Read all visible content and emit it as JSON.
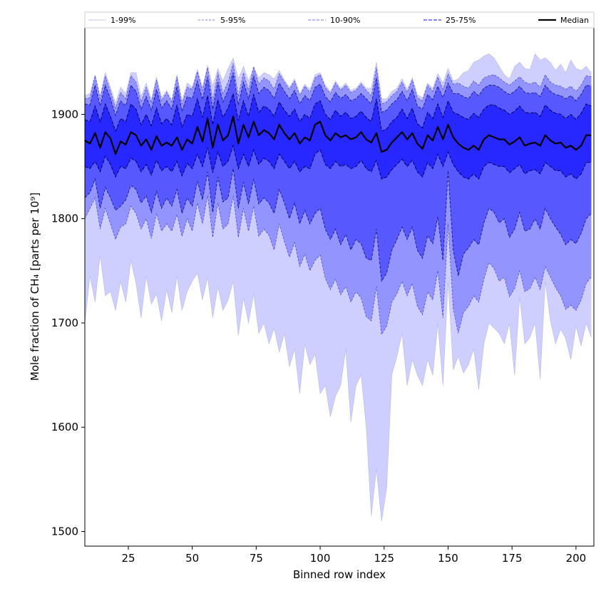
{
  "chart_data": {
    "type": "area",
    "xlabel": "Binned row index",
    "ylabel": "Mole fraction of CH₄ [parts per 10⁹]",
    "xlim": [
      8,
      207
    ],
    "ylim": [
      1486,
      1983
    ],
    "x_ticks": [
      25,
      50,
      75,
      100,
      125,
      150,
      175,
      200
    ],
    "y_ticks": [
      1500,
      1600,
      1700,
      1800,
      1900
    ],
    "grid": false,
    "legend_position": "top",
    "x": [
      8,
      10,
      12,
      14,
      16,
      18,
      20,
      22,
      24,
      26,
      28,
      30,
      32,
      34,
      36,
      38,
      40,
      42,
      44,
      46,
      48,
      50,
      52,
      54,
      56,
      58,
      60,
      62,
      64,
      66,
      68,
      70,
      72,
      74,
      76,
      78,
      80,
      82,
      84,
      86,
      88,
      90,
      92,
      94,
      96,
      98,
      100,
      102,
      104,
      106,
      108,
      110,
      112,
      114,
      116,
      118,
      120,
      122,
      124,
      126,
      128,
      130,
      132,
      134,
      136,
      138,
      140,
      142,
      144,
      146,
      148,
      150,
      152,
      154,
      156,
      158,
      160,
      162,
      164,
      166,
      168,
      170,
      172,
      174,
      176,
      178,
      180,
      182,
      184,
      186,
      188,
      190,
      192,
      194,
      196,
      198,
      200,
      202,
      204,
      206
    ],
    "series": [
      {
        "name": "Median",
        "values": [
          1875,
          1872,
          1882,
          1868,
          1883,
          1877,
          1862,
          1874,
          1871,
          1883,
          1880,
          1870,
          1876,
          1866,
          1879,
          1870,
          1873,
          1870,
          1878,
          1866,
          1876,
          1872,
          1888,
          1874,
          1896,
          1868,
          1890,
          1875,
          1880,
          1898,
          1872,
          1890,
          1878,
          1893,
          1880,
          1885,
          1882,
          1876,
          1890,
          1882,
          1876,
          1882,
          1872,
          1878,
          1875,
          1890,
          1893,
          1880,
          1875,
          1882,
          1878,
          1880,
          1876,
          1878,
          1883,
          1876,
          1873,
          1882,
          1864,
          1866,
          1873,
          1878,
          1883,
          1876,
          1882,
          1872,
          1867,
          1880,
          1875,
          1888,
          1876,
          1890,
          1878,
          1872,
          1868,
          1866,
          1870,
          1866,
          1876,
          1880,
          1878,
          1876,
          1876,
          1871,
          1874,
          1878,
          1870,
          1872,
          1873,
          1870,
          1880,
          1875,
          1872,
          1873,
          1868,
          1870,
          1866,
          1870,
          1880,
          1880
        ]
      },
      {
        "name": "25-75%",
        "lower": [
          1850,
          1848,
          1855,
          1845,
          1860,
          1852,
          1840,
          1850,
          1848,
          1858,
          1855,
          1845,
          1852,
          1842,
          1856,
          1846,
          1850,
          1845,
          1855,
          1841,
          1853,
          1848,
          1862,
          1850,
          1868,
          1844,
          1864,
          1850,
          1855,
          1870,
          1848,
          1862,
          1850,
          1866,
          1852,
          1858,
          1855,
          1848,
          1862,
          1855,
          1848,
          1855,
          1845,
          1850,
          1848,
          1862,
          1866,
          1852,
          1848,
          1855,
          1850,
          1852,
          1848,
          1850,
          1856,
          1848,
          1845,
          1856,
          1838,
          1840,
          1847,
          1852,
          1857,
          1850,
          1856,
          1845,
          1840,
          1854,
          1848,
          1862,
          1850,
          1864,
          1852,
          1845,
          1840,
          1838,
          1843,
          1838,
          1850,
          1854,
          1852,
          1850,
          1850,
          1844,
          1848,
          1852,
          1843,
          1846,
          1847,
          1843,
          1854,
          1850,
          1846,
          1846,
          1840,
          1843,
          1838,
          1843,
          1854,
          1854
        ],
        "upper": [
          1895,
          1893,
          1908,
          1893,
          1910,
          1898,
          1884,
          1896,
          1893,
          1910,
          1905,
          1890,
          1900,
          1889,
          1906,
          1891,
          1896,
          1890,
          1909,
          1888,
          1900,
          1898,
          1915,
          1897,
          1918,
          1890,
          1914,
          1897,
          1906,
          1920,
          1894,
          1913,
          1898,
          1919,
          1902,
          1908,
          1905,
          1898,
          1912,
          1904,
          1898,
          1905,
          1893,
          1900,
          1896,
          1910,
          1913,
          1900,
          1895,
          1904,
          1898,
          1902,
          1896,
          1898,
          1903,
          1897,
          1893,
          1915,
          1884,
          1886,
          1893,
          1897,
          1905,
          1896,
          1906,
          1891,
          1887,
          1902,
          1896,
          1910,
          1897,
          1913,
          1902,
          1900,
          1897,
          1895,
          1901,
          1897,
          1905,
          1909,
          1909,
          1906,
          1904,
          1900,
          1903,
          1908,
          1902,
          1901,
          1902,
          1898,
          1909,
          1904,
          1901,
          1900,
          1896,
          1900,
          1895,
          1901,
          1910,
          1908
        ]
      },
      {
        "name": "10-90%",
        "lower": [
          1820,
          1825,
          1838,
          1810,
          1830,
          1820,
          1808,
          1812,
          1818,
          1832,
          1828,
          1815,
          1822,
          1806,
          1826,
          1810,
          1820,
          1812,
          1828,
          1805,
          1820,
          1812,
          1836,
          1818,
          1845,
          1806,
          1840,
          1816,
          1820,
          1848,
          1810,
          1835,
          1814,
          1838,
          1814,
          1820,
          1815,
          1805,
          1828,
          1815,
          1800,
          1815,
          1795,
          1808,
          1795,
          1805,
          1810,
          1790,
          1780,
          1790,
          1775,
          1785,
          1770,
          1780,
          1776,
          1762,
          1760,
          1790,
          1740,
          1748,
          1770,
          1780,
          1792,
          1780,
          1792,
          1770,
          1762,
          1784,
          1776,
          1802,
          1760,
          1846,
          1770,
          1745,
          1766,
          1772,
          1780,
          1775,
          1796,
          1810,
          1806,
          1796,
          1800,
          1782,
          1790,
          1806,
          1788,
          1790,
          1800,
          1790,
          1810,
          1800,
          1792,
          1785,
          1775,
          1780,
          1776,
          1786,
          1800,
          1805
        ],
        "upper": [
          1910,
          1909,
          1928,
          1908,
          1928,
          1915,
          1899,
          1913,
          1908,
          1928,
          1922,
          1905,
          1917,
          1904,
          1924,
          1906,
          1913,
          1905,
          1927,
          1903,
          1917,
          1915,
          1932,
          1914,
          1936,
          1905,
          1931,
          1912,
          1923,
          1940,
          1909,
          1931,
          1915,
          1937,
          1920,
          1926,
          1923,
          1915,
          1930,
          1922,
          1915,
          1923,
          1910,
          1918,
          1913,
          1926,
          1929,
          1917,
          1912,
          1921,
          1915,
          1919,
          1913,
          1915,
          1920,
          1915,
          1910,
          1935,
          1902,
          1904,
          1910,
          1914,
          1922,
          1913,
          1924,
          1908,
          1905,
          1919,
          1914,
          1927,
          1916,
          1930,
          1920,
          1920,
          1917,
          1915,
          1922,
          1918,
          1925,
          1928,
          1928,
          1926,
          1922,
          1919,
          1922,
          1927,
          1921,
          1920,
          1921,
          1917,
          1928,
          1922,
          1919,
          1918,
          1915,
          1918,
          1913,
          1919,
          1928,
          1927
        ]
      },
      {
        "name": "5-95%",
        "lower": [
          1800,
          1810,
          1820,
          1790,
          1810,
          1795,
          1780,
          1792,
          1795,
          1812,
          1805,
          1790,
          1800,
          1781,
          1805,
          1788,
          1795,
          1788,
          1804,
          1783,
          1800,
          1788,
          1815,
          1795,
          1822,
          1782,
          1815,
          1790,
          1795,
          1822,
          1782,
          1810,
          1788,
          1812,
          1783,
          1790,
          1784,
          1770,
          1795,
          1778,
          1763,
          1777,
          1754,
          1766,
          1750,
          1760,
          1765,
          1743,
          1732,
          1742,
          1727,
          1735,
          1720,
          1730,
          1724,
          1706,
          1702,
          1735,
          1689,
          1697,
          1720,
          1728,
          1740,
          1726,
          1738,
          1716,
          1708,
          1730,
          1722,
          1750,
          1705,
          1795,
          1714,
          1690,
          1710,
          1716,
          1726,
          1720,
          1742,
          1758,
          1752,
          1740,
          1744,
          1725,
          1733,
          1750,
          1730,
          1733,
          1744,
          1732,
          1754,
          1744,
          1734,
          1726,
          1713,
          1717,
          1712,
          1722,
          1738,
          1744
        ],
        "upper": [
          1915,
          1916,
          1937,
          1915,
          1937,
          1922,
          1906,
          1921,
          1915,
          1937,
          1931,
          1912,
          1926,
          1911,
          1933,
          1913,
          1921,
          1912,
          1936,
          1910,
          1926,
          1924,
          1941,
          1923,
          1945,
          1913,
          1940,
          1920,
          1931,
          1949,
          1917,
          1940,
          1923,
          1946,
          1929,
          1935,
          1932,
          1924,
          1939,
          1931,
          1924,
          1932,
          1918,
          1927,
          1921,
          1935,
          1938,
          1926,
          1920,
          1930,
          1923,
          1928,
          1921,
          1923,
          1929,
          1923,
          1918,
          1945,
          1910,
          1912,
          1918,
          1922,
          1931,
          1921,
          1933,
          1916,
          1913,
          1928,
          1922,
          1936,
          1924,
          1939,
          1929,
          1930,
          1927,
          1925,
          1932,
          1928,
          1935,
          1937,
          1938,
          1935,
          1931,
          1928,
          1932,
          1936,
          1931,
          1929,
          1931,
          1926,
          1938,
          1931,
          1928,
          1927,
          1924,
          1927,
          1922,
          1928,
          1937,
          1936
        ]
      },
      {
        "name": "1-99%",
        "lower": [
          1700,
          1745,
          1720,
          1765,
          1726,
          1730,
          1712,
          1740,
          1720,
          1760,
          1738,
          1705,
          1745,
          1718,
          1728,
          1702,
          1732,
          1710,
          1745,
          1712,
          1730,
          1740,
          1748,
          1722,
          1744,
          1705,
          1735,
          1712,
          1722,
          1740,
          1688,
          1724,
          1700,
          1728,
          1690,
          1700,
          1680,
          1695,
          1672,
          1690,
          1658,
          1675,
          1632,
          1680,
          1660,
          1670,
          1632,
          1640,
          1610,
          1630,
          1640,
          1675,
          1605,
          1640,
          1650,
          1600,
          1515,
          1560,
          1510,
          1542,
          1650,
          1668,
          1690,
          1640,
          1665,
          1650,
          1640,
          1665,
          1650,
          1700,
          1640,
          1740,
          1655,
          1668,
          1652,
          1660,
          1675,
          1636,
          1680,
          1700,
          1695,
          1690,
          1680,
          1700,
          1650,
          1725,
          1680,
          1686,
          1700,
          1646,
          1740,
          1702,
          1680,
          1694,
          1685,
          1665,
          1697,
          1678,
          1700,
          1686
        ],
        "upper": [
          1918,
          1920,
          1938,
          1918,
          1940,
          1926,
          1911,
          1926,
          1920,
          1940,
          1940,
          1917,
          1930,
          1914,
          1936,
          1916,
          1923,
          1914,
          1938,
          1913,
          1930,
          1926,
          1943,
          1926,
          1947,
          1927,
          1944,
          1932,
          1944,
          1954,
          1934,
          1946,
          1932,
          1945,
          1935,
          1940,
          1938,
          1934,
          1942,
          1933,
          1926,
          1934,
          1920,
          1929,
          1924,
          1938,
          1940,
          1928,
          1922,
          1932,
          1925,
          1930,
          1923,
          1925,
          1931,
          1925,
          1925,
          1950,
          1915,
          1915,
          1922,
          1925,
          1934,
          1924,
          1935,
          1919,
          1916,
          1930,
          1925,
          1939,
          1930,
          1944,
          1932,
          1934,
          1940,
          1942,
          1950,
          1952,
          1956,
          1958,
          1954,
          1946,
          1938,
          1934,
          1946,
          1950,
          1944,
          1943,
          1958,
          1952,
          1954,
          1950,
          1942,
          1948,
          1940,
          1952,
          1944,
          1942,
          1946,
          1940
        ]
      }
    ],
    "colors": {
      "band_1_99": "#ceceff",
      "band_5_95": "#9494ff",
      "band_10_90": "#5858ff",
      "band_25_75": "#2727ff",
      "median": "#000000",
      "axis": "#000000"
    }
  }
}
